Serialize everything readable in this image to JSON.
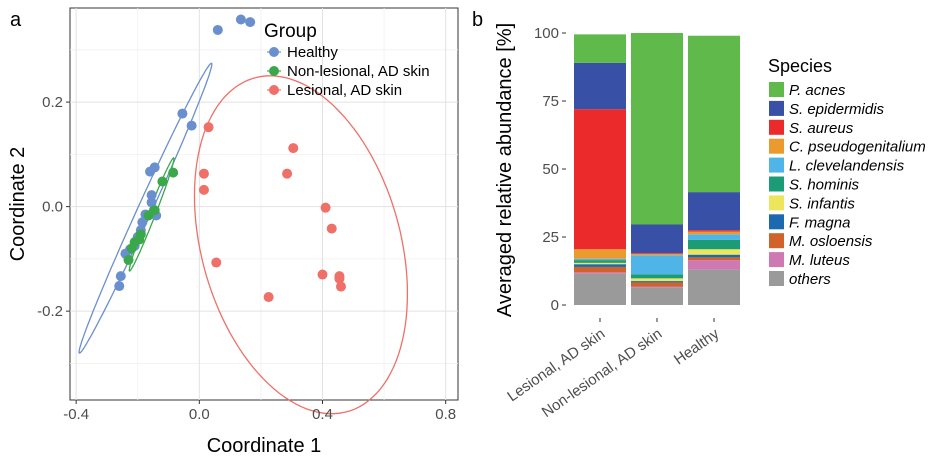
{
  "panel_a_label": "a",
  "panel_b_label": "b",
  "colors": {
    "healthy": "#6a8fcf",
    "nonlesional": "#3aa84a",
    "lesional": "#ee7068"
  },
  "chart_data": [
    {
      "type": "scatter",
      "panel": "a",
      "xlabel": "Coordinate 1",
      "ylabel": "Coordinate 2",
      "xlim": [
        -0.42,
        0.84
      ],
      "ylim": [
        -0.37,
        0.38
      ],
      "xticks": [
        -0.4,
        0.0,
        0.4,
        0.8
      ],
      "xtick_labels": [
        "-0.4",
        "0.0",
        "0.4",
        "0.8"
      ],
      "yticks": [
        -0.2,
        0.0,
        0.2
      ],
      "ytick_labels": [
        "-0.2",
        "0.0",
        "0.2"
      ],
      "grid": true,
      "legend": {
        "title": "Group",
        "placement": "top-right",
        "entries": [
          "Healthy",
          "Non-lesional, AD skin",
          "Lesional, AD skin"
        ]
      },
      "series": [
        {
          "name": "Healthy",
          "color": "#6a8fcf",
          "points": [
            [
              0.06,
              0.338
            ],
            [
              0.135,
              0.358
            ],
            [
              0.165,
              0.353
            ],
            [
              -0.055,
              0.178
            ],
            [
              -0.025,
              0.155
            ],
            [
              -0.145,
              0.075
            ],
            [
              -0.16,
              0.067
            ],
            [
              -0.155,
              0.022
            ],
            [
              -0.155,
              0.008
            ],
            [
              -0.14,
              -0.017
            ],
            [
              -0.175,
              -0.015
            ],
            [
              -0.185,
              -0.03
            ],
            [
              -0.19,
              -0.045
            ],
            [
              -0.2,
              -0.058
            ],
            [
              -0.21,
              -0.075
            ],
            [
              -0.225,
              -0.082
            ],
            [
              -0.24,
              -0.09
            ],
            [
              -0.255,
              -0.133
            ],
            [
              -0.26,
              -0.152
            ]
          ]
        },
        {
          "name": "Non-lesional, AD skin",
          "color": "#3aa84a",
          "points": [
            [
              -0.085,
              0.065
            ],
            [
              -0.12,
              0.048
            ],
            [
              -0.145,
              -0.007
            ],
            [
              -0.165,
              -0.017
            ],
            [
              -0.19,
              -0.053
            ],
            [
              -0.195,
              -0.063
            ],
            [
              -0.21,
              -0.068
            ],
            [
              -0.22,
              -0.08
            ],
            [
              -0.23,
              -0.102
            ]
          ]
        },
        {
          "name": "Lesional, AD skin",
          "color": "#ee7068",
          "points": [
            [
              0.03,
              0.152
            ],
            [
              0.305,
              0.112
            ],
            [
              0.285,
              0.063
            ],
            [
              0.015,
              0.063
            ],
            [
              0.015,
              0.032
            ],
            [
              0.41,
              -0.002
            ],
            [
              0.43,
              -0.042
            ],
            [
              0.055,
              -0.107
            ],
            [
              0.4,
              -0.13
            ],
            [
              0.455,
              -0.133
            ],
            [
              0.455,
              -0.138
            ],
            [
              0.46,
              -0.153
            ],
            [
              0.225,
              -0.173
            ]
          ]
        }
      ],
      "ellipses": [
        {
          "series": "Healthy",
          "color": "#6a8fcf",
          "center": [
            -0.175,
            -0.003
          ],
          "axis1": [
            0.215,
            0.277
          ],
          "axis2": [
            0.0155,
            -0.0125
          ]
        },
        {
          "series": "Non-lesional, AD skin",
          "color": "#3aa84a",
          "center": [
            -0.155,
            -0.015
          ],
          "axis1": [
            0.072,
            0.108
          ],
          "axis2": [
            0.0085,
            -0.0058
          ]
        },
        {
          "series": "Lesional, AD skin",
          "color": "#ee7068",
          "center": [
            0.33,
            -0.073
          ],
          "axis1": [
            -0.3,
            0.235
          ],
          "axis2": [
            0.172,
            0.222
          ]
        }
      ]
    },
    {
      "type": "bar",
      "panel": "b",
      "stacked": true,
      "ylabel": "Averaged relative abundance [%]",
      "xlabel": "",
      "ylim": [
        0,
        100
      ],
      "yticks": [
        0,
        25,
        50,
        75,
        100
      ],
      "ytick_labels": [
        "0",
        "25",
        "50",
        "75",
        "100"
      ],
      "categories": [
        "Lesional, AD skin",
        "Non-lesional, AD skin",
        "Healthy"
      ],
      "legend": {
        "title": "Species",
        "placement": "right"
      },
      "series": [
        {
          "name": "others",
          "color": "#9a9a9a",
          "values": [
            11.5,
            6.5,
            13
          ]
        },
        {
          "name": "M. luteus",
          "color": "#cf79b2",
          "values": [
            0.5,
            0.3,
            3.5
          ]
        },
        {
          "name": "M. osloensis",
          "color": "#d1622a",
          "values": [
            2,
            1.5,
            1
          ]
        },
        {
          "name": "F. magna",
          "color": "#1d69b0",
          "values": [
            1,
            0.5,
            1
          ]
        },
        {
          "name": "S. infantis",
          "color": "#ede65d",
          "values": [
            0.5,
            1,
            2
          ]
        },
        {
          "name": "S. hominis",
          "color": "#1b9c77",
          "values": [
            1,
            1.5,
            3.5
          ]
        },
        {
          "name": "L. clevelandensis",
          "color": "#4fb4e8",
          "values": [
            0.5,
            7,
            2
          ]
        },
        {
          "name": "C. pseudogenitalium",
          "color": "#eb9b2e",
          "values": [
            3.5,
            0.5,
            1
          ]
        },
        {
          "name": "S. aureus",
          "color": "#eb2a2b",
          "values": [
            51.5,
            0.3,
            0.5
          ]
        },
        {
          "name": "S. epidermidis",
          "color": "#3850a6",
          "values": [
            17,
            10.5,
            14
          ]
        },
        {
          "name": "P. acnes",
          "color": "#5fb94b",
          "values": [
            10.5,
            70.4,
            57.5
          ]
        }
      ]
    }
  ]
}
